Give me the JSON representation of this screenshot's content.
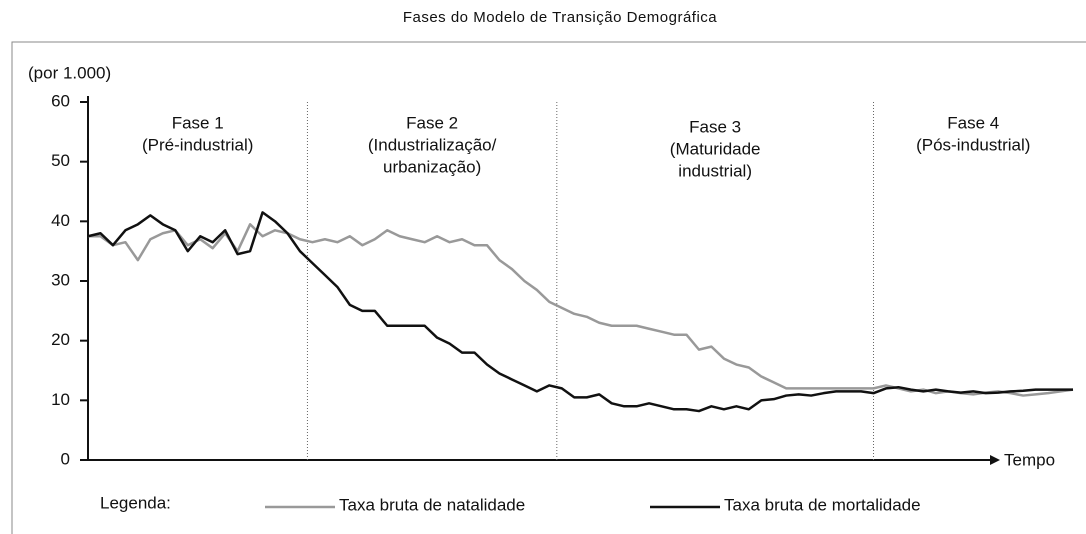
{
  "chart_data": {
    "type": "line",
    "title": "Fases do Modelo de Transição Demográfica",
    "y_label": "(por 1.000)",
    "x_label": "Tempo",
    "legend_title": "Legenda:",
    "categories": [
      null,
      null,
      null,
      null,
      null,
      null,
      null,
      null,
      null,
      null,
      null,
      null,
      null,
      null,
      null,
      null,
      null,
      null,
      null,
      null,
      null,
      null,
      null,
      null,
      null,
      null,
      null,
      null,
      null,
      null,
      null,
      null,
      null,
      null,
      null,
      null,
      null,
      null,
      null,
      null,
      null,
      null,
      null,
      null,
      null,
      null,
      null,
      null,
      null,
      null,
      null,
      null,
      null,
      null,
      null,
      null,
      null,
      null,
      null,
      null,
      null,
      null,
      null,
      null,
      null,
      null,
      null,
      null,
      null,
      null,
      null,
      null,
      null,
      null,
      null,
      null,
      null,
      null,
      null,
      null
    ],
    "series": [
      {
        "name": "Taxa bruta de natalidade",
        "color": "#999999",
        "values": [
          37.5,
          37.5,
          36,
          36.5,
          33.5,
          37,
          38,
          38.5,
          36,
          37,
          35.5,
          38,
          35,
          39.5,
          37.5,
          38.5,
          38,
          37,
          36.5,
          37,
          36.5,
          37.5,
          36,
          37,
          38.5,
          37.5,
          37,
          36.5,
          37.5,
          36.5,
          37,
          36,
          36,
          33.5,
          32,
          30,
          28.5,
          26.5,
          25.5,
          24.5,
          24,
          23,
          22.5,
          22.5,
          22.5,
          22,
          21.5,
          21,
          21,
          18.5,
          19,
          17,
          16,
          15.5,
          14,
          13,
          12,
          12,
          12,
          12,
          12,
          12,
          12,
          12,
          12.5,
          12,
          11.5,
          11.8,
          11.2,
          11.5,
          11.2,
          11,
          11.3,
          11.5,
          11.2,
          10.8,
          11,
          11.2,
          11.5,
          11.8
        ]
      },
      {
        "name": "Taxa bruta de mortalidade",
        "color": "#111111",
        "values": [
          37.5,
          38,
          36,
          38.5,
          39.5,
          41,
          39.5,
          38.5,
          35,
          37.5,
          36.5,
          38.5,
          34.5,
          35,
          41.5,
          40,
          38,
          35,
          33,
          31,
          29,
          26,
          25,
          25,
          22.5,
          22.5,
          22.5,
          22.5,
          20.5,
          19.5,
          18,
          18,
          16,
          14.5,
          13.5,
          12.5,
          11.5,
          12.5,
          12,
          10.5,
          10.5,
          11,
          9.5,
          9,
          9,
          9.5,
          9,
          8.5,
          8.5,
          8.2,
          9,
          8.5,
          9,
          8.5,
          10,
          10.2,
          10.8,
          11,
          10.8,
          11.2,
          11.5,
          11.5,
          11.5,
          11.2,
          12,
          12.2,
          11.8,
          11.5,
          11.8,
          11.5,
          11.3,
          11.5,
          11.2,
          11.3,
          11.5,
          11.6,
          11.8,
          11.8,
          11.8,
          11.8
        ]
      }
    ],
    "phase_boundaries": [
      17.6,
      37.6,
      63
    ],
    "phases": [
      {
        "lines": [
          "Fase 1",
          "(Pré-industrial)"
        ]
      },
      {
        "lines": [
          "Fase 2",
          "(Industrialização/",
          "urbanização)"
        ]
      },
      {
        "lines": [
          "Fase 3",
          "(Maturidade",
          "industrial)"
        ]
      },
      {
        "lines": [
          "Fase 4",
          "(Pós-industrial)"
        ]
      }
    ],
    "ylim": [
      0,
      60
    ],
    "yticks": [
      0,
      10,
      20,
      30,
      40,
      50,
      60
    ]
  }
}
